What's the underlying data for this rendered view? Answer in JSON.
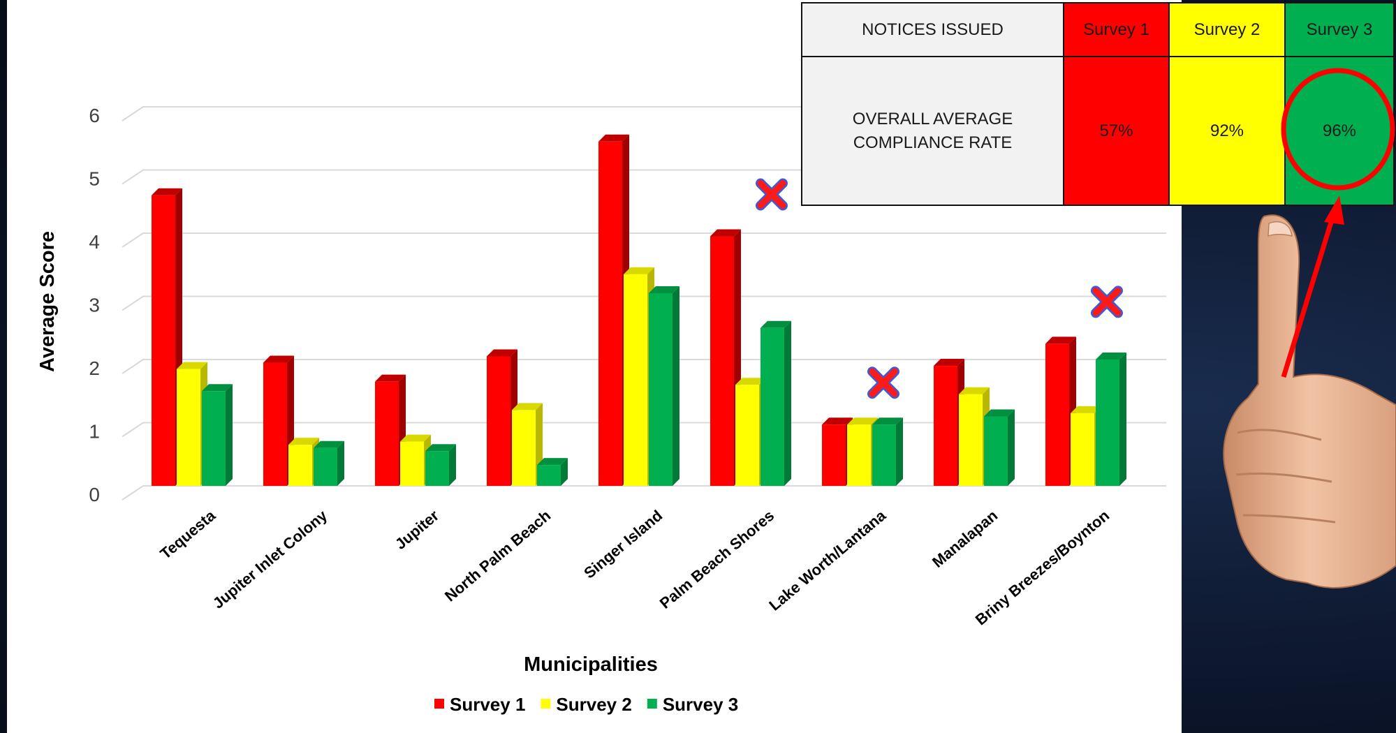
{
  "chart_data": {
    "type": "bar",
    "categories": [
      "Tequesta",
      "Jupiter Inlet Colony",
      "Jupiter",
      "North Palm Beach",
      "Singer Island",
      "Palm Beach Shores",
      "Lake Worth/Lantana",
      "Manalapan",
      "Briny Breezes/Boynton"
    ],
    "series": [
      {
        "name": "Survey 1",
        "color": "#ff0000",
        "values": [
          4.6,
          1.95,
          1.65,
          2.05,
          5.45,
          3.95,
          0.97,
          1.9,
          2.25
        ]
      },
      {
        "name": "Survey 2",
        "color": "#ffff00",
        "values": [
          1.85,
          0.65,
          0.7,
          1.2,
          3.35,
          1.6,
          0.97,
          1.45,
          1.15
        ]
      },
      {
        "name": "Survey 3",
        "color": "#00b050",
        "values": [
          1.5,
          0.6,
          0.55,
          0.33,
          3.05,
          2.5,
          0.97,
          1.1,
          2.0
        ]
      }
    ],
    "title": "",
    "xlabel": "Municipalities",
    "ylabel": "Average Score",
    "ylim": [
      0,
      6
    ],
    "yticks": [
      "0",
      "1",
      "2",
      "3",
      "4",
      "5",
      "6"
    ],
    "grid": true,
    "legend_position": "bottom",
    "style": "3d-bar",
    "annotations": {
      "marked_categories": [
        "Palm Beach Shores",
        "Lake Worth/Lantana",
        "Briny Breezes/Boynton"
      ],
      "marker": "red-x-icon"
    }
  },
  "table": {
    "header_label": "NOTICES ISSUED",
    "row_label": "OVERALL AVERAGE COMPLIANCE RATE",
    "columns": [
      {
        "name": "Survey 1",
        "rate": "57%",
        "color": "#ff0000"
      },
      {
        "name": "Survey 2",
        "rate": "92%",
        "color": "#ffff00"
      },
      {
        "name": "Survey 3",
        "rate": "96%",
        "color": "#00b050"
      }
    ],
    "highlight": {
      "column": "Survey 3",
      "shape": "red-circle",
      "color": "#ff0000"
    }
  },
  "decorations": {
    "thumb": "thumbs-up-hand",
    "arrow": "red-arrow-to-highlight"
  }
}
